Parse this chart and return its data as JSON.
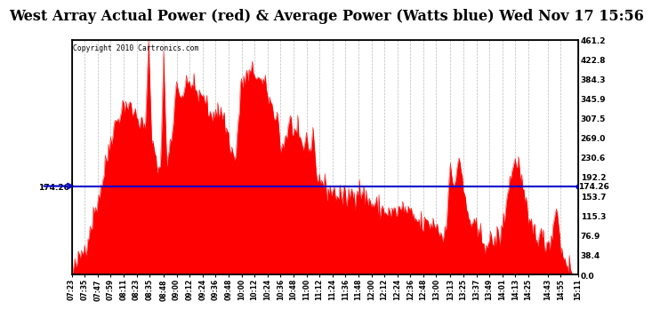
{
  "title": "West Array Actual Power (red) & Average Power (Watts blue) Wed Nov 17 15:56",
  "copyright_text": "Copyright 2010 Cartronics.com",
  "avg_value": 174.26,
  "y_max": 461.2,
  "y_min": 0.0,
  "y_ticks": [
    0.0,
    38.4,
    76.9,
    115.3,
    153.7,
    192.2,
    230.6,
    269.0,
    307.5,
    345.9,
    384.3,
    422.8,
    461.2
  ],
  "fill_color": "#FF0000",
  "avg_line_color": "#0000CC",
  "background_color": "#FFFFFF",
  "grid_color": "#AAAAAA",
  "title_fontsize": 11.5,
  "x_labels": [
    "07:23",
    "07:35",
    "07:47",
    "07:59",
    "08:11",
    "08:23",
    "08:35",
    "08:48",
    "09:00",
    "09:12",
    "09:24",
    "09:36",
    "09:48",
    "10:00",
    "10:12",
    "10:24",
    "10:36",
    "10:48",
    "11:00",
    "11:12",
    "11:24",
    "11:36",
    "11:48",
    "12:00",
    "12:12",
    "12:24",
    "12:36",
    "12:48",
    "13:00",
    "13:13",
    "13:25",
    "13:37",
    "13:49",
    "14:01",
    "14:13",
    "14:25",
    "14:43",
    "14:55",
    "15:11"
  ]
}
